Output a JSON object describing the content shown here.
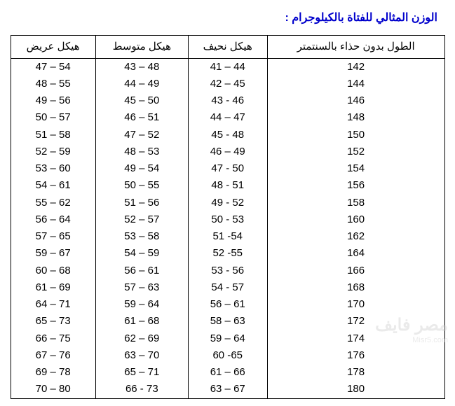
{
  "title": "الوزن المثالي للفتاة بالكيلوجرام :",
  "headers": {
    "height": "الطول بدون حذاء\nبالسنتمتر",
    "thin": "هيكل نحيف",
    "medium": "هيكل متوسط",
    "wide": "هيكل عريض"
  },
  "rows": [
    {
      "height": "142",
      "thin": "44 – 41",
      "medium": "48 – 43",
      "wide": "54 – 47"
    },
    {
      "height": "144",
      "thin": "45 – 42",
      "medium": "49 – 44",
      "wide": "55 – 48"
    },
    {
      "height": "146",
      "thin": "46 - 43",
      "medium": "50 – 45",
      "wide": "56 – 49"
    },
    {
      "height": "148",
      "thin": "47 – 44",
      "medium": "51 – 46",
      "wide": "57 – 50"
    },
    {
      "height": "150",
      "thin": "48 - 45",
      "medium": "52 – 47",
      "wide": "58 – 51"
    },
    {
      "height": "152",
      "thin": "49 – 46",
      "medium": "53 – 48",
      "wide": "59 – 52"
    },
    {
      "height": "154",
      "thin": "50 - 47",
      "medium": "54 – 49",
      "wide": "60 – 53"
    },
    {
      "height": "156",
      "thin": "51 - 48",
      "medium": "55 – 50",
      "wide": "61 – 54"
    },
    {
      "height": "158",
      "thin": "52 - 49",
      "medium": "56 – 51",
      "wide": "62 – 55"
    },
    {
      "height": "160",
      "thin": "53 - 50",
      "medium": "57 – 52",
      "wide": "64 – 56"
    },
    {
      "height": "162",
      "thin": "54- 51",
      "medium": "58 – 53",
      "wide": "65 – 57"
    },
    {
      "height": "164",
      "thin": "55- 52",
      "medium": "59 – 54",
      "wide": "67 – 59"
    },
    {
      "height": "166",
      "thin": "56 - 53",
      "medium": "61 – 56",
      "wide": "68 – 60"
    },
    {
      "height": "168",
      "thin": "57 - 54",
      "medium": "63 – 57",
      "wide": "69 – 61"
    },
    {
      "height": "170",
      "thin": "61 – 56",
      "medium": "64 – 59",
      "wide": "71 – 64"
    },
    {
      "height": "172",
      "thin": "63 – 58",
      "medium": "68 – 61",
      "wide": "73 – 65"
    },
    {
      "height": "174",
      "thin": "64 – 59",
      "medium": "69 – 62",
      "wide": "75 – 66"
    },
    {
      "height": "176",
      "thin": "65- 60",
      "medium": "70 – 63",
      "wide": "76 – 67"
    },
    {
      "height": "178",
      "thin": "66 – 61",
      "medium": "71 – 65",
      "wide": "78 – 69"
    },
    {
      "height": "180",
      "thin": "67 – 63",
      "medium": "73 - 66",
      "wide": "80 – 70"
    }
  ],
  "watermark": {
    "main": "مصر فايف",
    "sub": "Misr5.com"
  },
  "styling": {
    "title_color": "#0000cc",
    "border_color": "#000000",
    "background_color": "#ffffff",
    "font_family": "Arial",
    "title_fontsize": 16,
    "cell_fontsize": 15,
    "watermark_color": "#cccccc"
  }
}
